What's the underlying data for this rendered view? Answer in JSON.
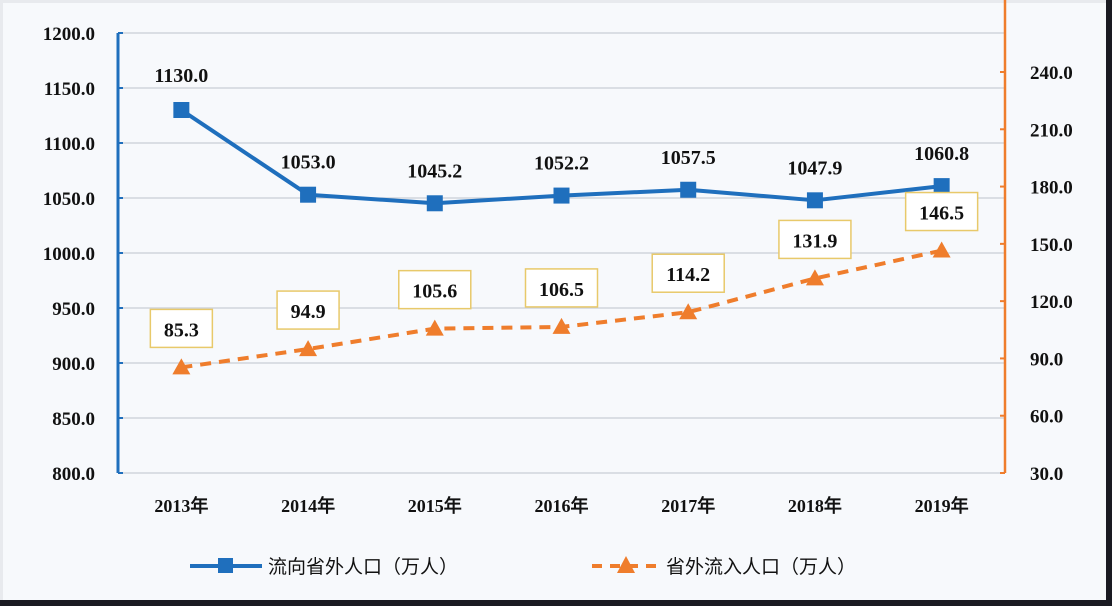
{
  "chart_data": {
    "type": "line",
    "title": "",
    "xlabel": "",
    "categories": [
      "2013年",
      "2014年",
      "2015年",
      "2016年",
      "2017年",
      "2018年",
      "2019年"
    ],
    "series": [
      {
        "name": "流向省外人口（万人）",
        "axis": "left",
        "style": "solid",
        "marker": "square",
        "color": "#1f6fbd",
        "values": [
          1130.0,
          1053.0,
          1045.2,
          1052.2,
          1057.5,
          1047.9,
          1060.8
        ],
        "labels": [
          "1130.0",
          "1053.0",
          "1045.2",
          "1052.2",
          "1057.5",
          "1047.9",
          "1060.8"
        ]
      },
      {
        "name": "省外流入人口（万人）",
        "axis": "right",
        "style": "dashed",
        "marker": "triangle",
        "color": "#ef7d2c",
        "values": [
          85.3,
          94.9,
          105.6,
          106.5,
          114.2,
          131.9,
          146.5
        ],
        "labels": [
          "85.3",
          "94.9",
          "105.6",
          "106.5",
          "114.2",
          "131.9",
          "146.5"
        ]
      }
    ],
    "y_left": {
      "ylim": [
        800,
        1200
      ],
      "ticks": [
        "1200.0",
        "1150.0",
        "1100.0",
        "1050.0",
        "1000.0",
        "950.0",
        "900.0",
        "850.0",
        "800.0"
      ],
      "color": "#1f6fbd"
    },
    "y_right": {
      "ylim": [
        30,
        240
      ],
      "ticks": [
        "240.0",
        "210.0",
        "180.0",
        "150.0",
        "120.0",
        "90.0",
        "60.0",
        "30.0"
      ],
      "color": "#ef7d2c"
    },
    "grid": true,
    "legend_position": "bottom"
  },
  "legend": {
    "items": [
      {
        "label": "流向省外人口（万人）"
      },
      {
        "label": "省外流入人口（万人）"
      }
    ]
  }
}
